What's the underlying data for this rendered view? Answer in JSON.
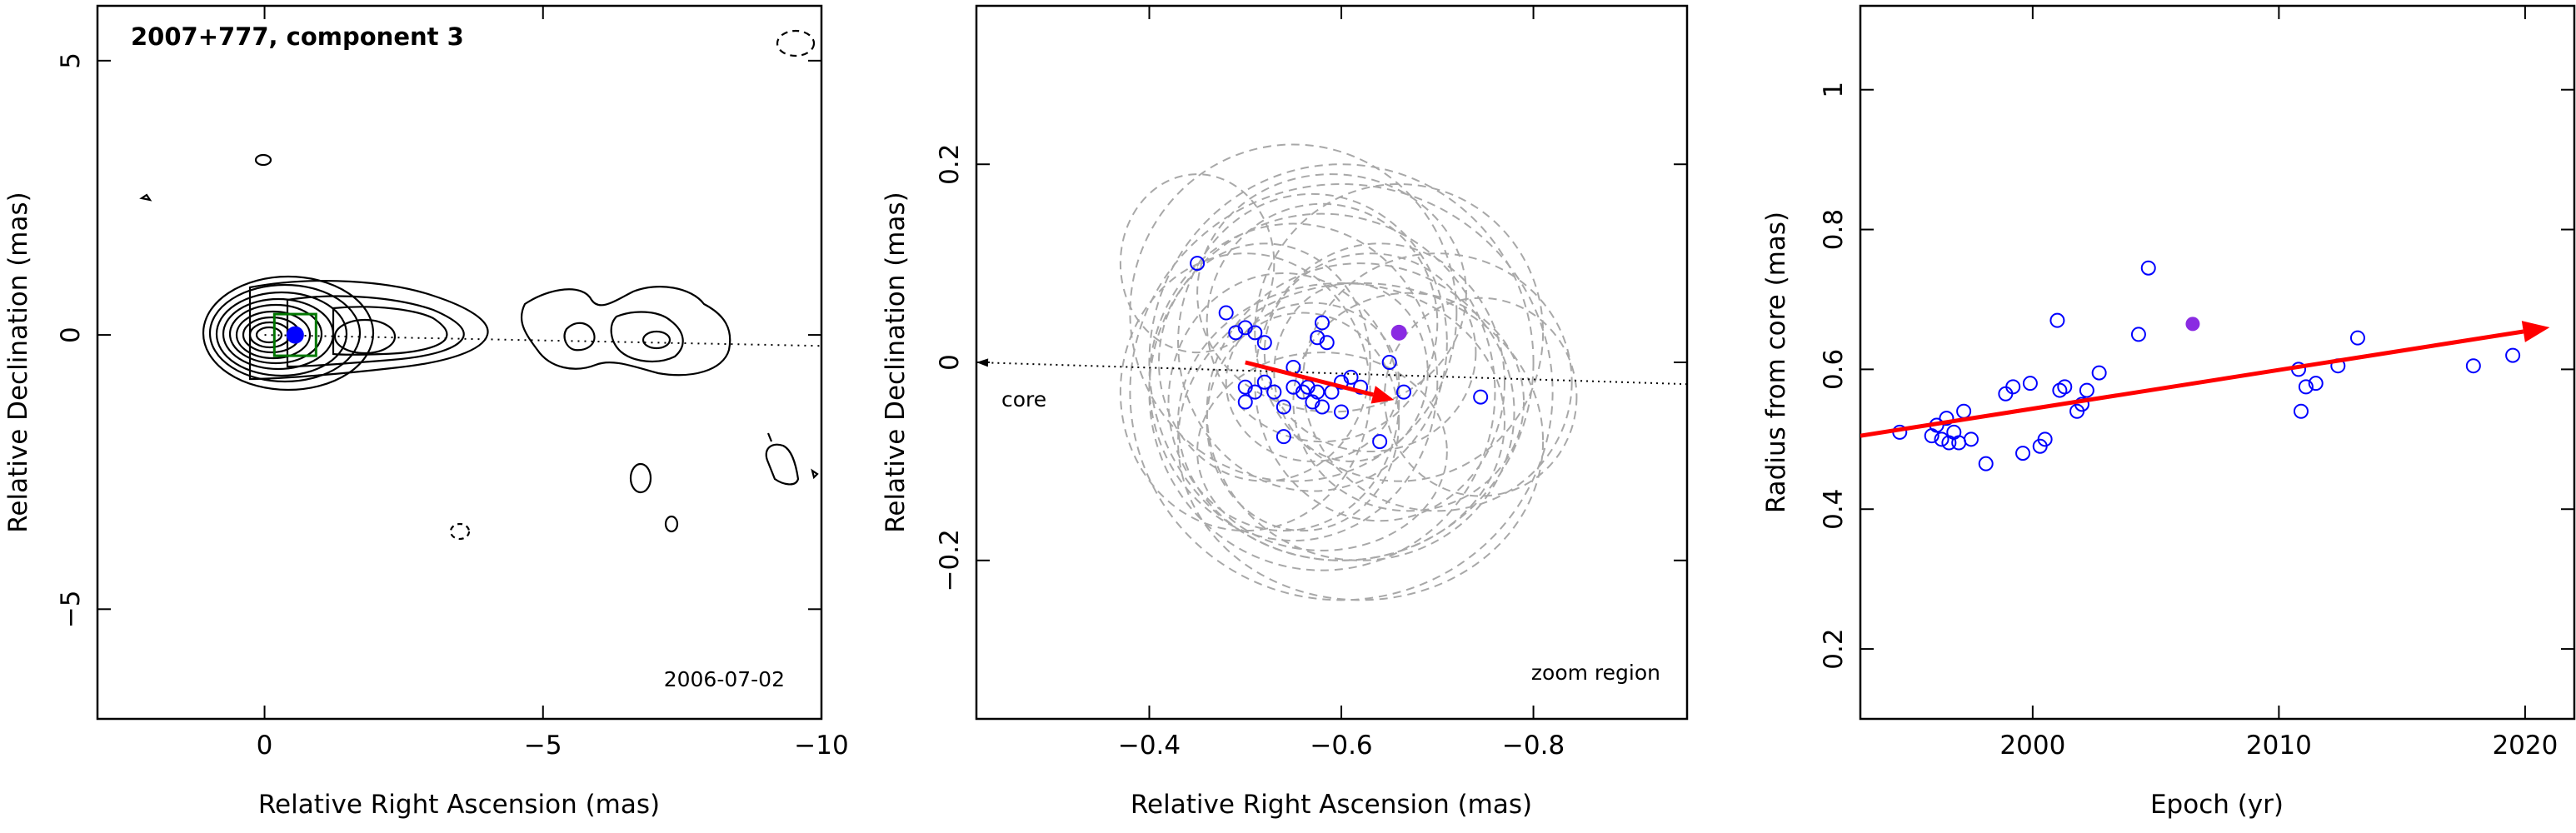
{
  "panels": {
    "map": {
      "title": "2007+777, component 3",
      "epoch_label": "2006-07-02",
      "xlabel": "Relative Right Ascension (mas)",
      "ylabel": "Relative Declination (mas)"
    },
    "zoom": {
      "xlabel": "Relative Right Ascension (mas)",
      "ylabel": "Relative Declination (mas)",
      "core_label": "core",
      "region_label": "zoom region"
    },
    "radius": {
      "xlabel": "Epoch (yr)",
      "ylabel": "Radius from core (mas)"
    }
  },
  "colors": {
    "axes": "#000000",
    "points": "#0000ff",
    "highlight": "#8a2be2",
    "arrow": "#ff0000",
    "ellipses": "#a8a8a8",
    "box": "#007700"
  },
  "chart_data": [
    {
      "type": "contour",
      "xlim": [
        3,
        -10
      ],
      "ylim": [
        -7,
        6
      ],
      "xticks": [
        0,
        -5,
        -10
      ],
      "xtick_labels": [
        "0",
        "−5",
        "−10"
      ],
      "yticks": [
        -5,
        0,
        5
      ],
      "ytick_labels": [
        "−5",
        "0",
        "5"
      ],
      "component_position": [
        -0.55,
        0.0
      ],
      "jet_direction_line": [
        [
          0,
          0
        ],
        [
          -10,
          -0.2
        ]
      ]
    },
    {
      "type": "scatter",
      "xlim": [
        -0.22,
        -0.96
      ],
      "ylim": [
        -0.36,
        0.36
      ],
      "xticks": [
        -0.4,
        -0.6,
        -0.8
      ],
      "xtick_labels": [
        "−0.4",
        "−0.6",
        "−0.8"
      ],
      "yticks": [
        -0.2,
        0,
        0.2
      ],
      "ytick_labels": [
        "−0.2",
        "0",
        "0.2"
      ],
      "points": [
        [
          -0.45,
          0.1
        ],
        [
          -0.48,
          0.05
        ],
        [
          -0.49,
          0.03
        ],
        [
          -0.5,
          0.035
        ],
        [
          -0.51,
          0.03
        ],
        [
          -0.52,
          0.02
        ],
        [
          -0.5,
          -0.025
        ],
        [
          -0.5,
          -0.04
        ],
        [
          -0.51,
          -0.03
        ],
        [
          -0.52,
          -0.02
        ],
        [
          -0.53,
          -0.03
        ],
        [
          -0.54,
          -0.045
        ],
        [
          -0.54,
          -0.075
        ],
        [
          -0.55,
          -0.005
        ],
        [
          -0.55,
          -0.025
        ],
        [
          -0.56,
          -0.03
        ],
        [
          -0.565,
          -0.025
        ],
        [
          -0.57,
          -0.04
        ],
        [
          -0.575,
          -0.03
        ],
        [
          -0.58,
          -0.045
        ],
        [
          -0.575,
          0.025
        ],
        [
          -0.58,
          0.04
        ],
        [
          -0.585,
          0.02
        ],
        [
          -0.59,
          -0.03
        ],
        [
          -0.6,
          -0.05
        ],
        [
          -0.6,
          -0.02
        ],
        [
          -0.61,
          -0.015
        ],
        [
          -0.62,
          -0.025
        ],
        [
          -0.64,
          -0.08
        ],
        [
          -0.65,
          0.0
        ],
        [
          -0.665,
          -0.03
        ],
        [
          -0.745,
          -0.035
        ]
      ],
      "highlight_point": [
        -0.66,
        0.03
      ],
      "motion_arrow": {
        "from": [
          -0.5,
          0.0
        ],
        "to": [
          -0.655,
          -0.038
        ]
      },
      "core_direction_line": {
        "from": [
          -0.96,
          -0.022
        ],
        "to": [
          -0.22,
          0.0
        ]
      },
      "uncertainty_ellipses": [
        {
          "c": [
            -0.58,
            -0.03
          ],
          "rx": 0.18,
          "ry": 0.18
        },
        {
          "c": [
            -0.6,
            0.0
          ],
          "rx": 0.2,
          "ry": 0.2
        },
        {
          "c": [
            -0.55,
            -0.02
          ],
          "rx": 0.15,
          "ry": 0.16
        },
        {
          "c": [
            -0.62,
            -0.05
          ],
          "rx": 0.16,
          "ry": 0.15
        },
        {
          "c": [
            -0.57,
            0.02
          ],
          "rx": 0.14,
          "ry": 0.15
        },
        {
          "c": [
            -0.6,
            -0.06
          ],
          "rx": 0.17,
          "ry": 0.14
        },
        {
          "c": [
            -0.54,
            -0.04
          ],
          "rx": 0.12,
          "ry": 0.13
        },
        {
          "c": [
            -0.64,
            -0.02
          ],
          "rx": 0.13,
          "ry": 0.14
        },
        {
          "c": [
            -0.58,
            0.04
          ],
          "rx": 0.12,
          "ry": 0.12
        },
        {
          "c": [
            -0.6,
            -0.03
          ],
          "rx": 0.22,
          "ry": 0.21
        },
        {
          "c": [
            -0.56,
            -0.06
          ],
          "rx": 0.1,
          "ry": 0.11
        },
        {
          "c": [
            -0.63,
            0.01
          ],
          "rx": 0.11,
          "ry": 0.1
        },
        {
          "c": [
            -0.52,
            0.0
          ],
          "rx": 0.11,
          "ry": 0.12
        },
        {
          "c": [
            -0.67,
            -0.04
          ],
          "rx": 0.12,
          "ry": 0.11
        },
        {
          "c": [
            -0.58,
            -0.09
          ],
          "rx": 0.13,
          "ry": 0.1
        },
        {
          "c": [
            -0.59,
            0.07
          ],
          "rx": 0.14,
          "ry": 0.12
        },
        {
          "c": [
            -0.7,
            -0.02
          ],
          "rx": 0.14,
          "ry": 0.13
        },
        {
          "c": [
            -0.5,
            -0.03
          ],
          "rx": 0.13,
          "ry": 0.14
        },
        {
          "c": [
            -0.61,
            -0.01
          ],
          "rx": 0.08,
          "ry": 0.09
        },
        {
          "c": [
            -0.57,
            -0.02
          ],
          "rx": 0.09,
          "ry": 0.08
        },
        {
          "c": [
            -0.745,
            -0.035
          ],
          "rx": 0.1,
          "ry": 0.1
        },
        {
          "c": [
            -0.45,
            0.1
          ],
          "rx": 0.08,
          "ry": 0.09
        },
        {
          "c": [
            -0.55,
            0.05
          ],
          "rx": 0.17,
          "ry": 0.17
        },
        {
          "c": [
            -0.62,
            -0.08
          ],
          "rx": 0.19,
          "ry": 0.16
        },
        {
          "c": [
            -0.66,
            0.03
          ],
          "rx": 0.15,
          "ry": 0.15
        }
      ]
    },
    {
      "type": "scatter",
      "xlim": [
        1993,
        2022
      ],
      "ylim": [
        0.1,
        1.12
      ],
      "xticks": [
        2000,
        2010,
        2020
      ],
      "xtick_labels": [
        "2000",
        "2010",
        "2020"
      ],
      "yticks": [
        0.2,
        0.4,
        0.6,
        0.8,
        1.0
      ],
      "ytick_labels": [
        "0.2",
        "0.4",
        "0.6",
        "0.8",
        "1"
      ],
      "x": [
        1994.6,
        1995.9,
        1996.1,
        1996.3,
        1996.5,
        1996.6,
        1996.8,
        1997.0,
        1997.2,
        1997.5,
        1998.1,
        1998.9,
        1999.2,
        1999.6,
        1999.9,
        2000.3,
        2000.5,
        2001.0,
        2001.1,
        2001.3,
        2001.8,
        2002.0,
        2002.2,
        2002.7,
        2004.3,
        2004.7,
        2010.8,
        2010.9,
        2011.1,
        2011.5,
        2012.4,
        2013.2,
        2017.9,
        2019.5
      ],
      "y": [
        0.51,
        0.505,
        0.52,
        0.5,
        0.53,
        0.495,
        0.51,
        0.495,
        0.54,
        0.5,
        0.465,
        0.565,
        0.575,
        0.48,
        0.58,
        0.49,
        0.5,
        0.67,
        0.57,
        0.575,
        0.54,
        0.55,
        0.57,
        0.595,
        0.65,
        0.745,
        0.6,
        0.54,
        0.575,
        0.58,
        0.605,
        0.645,
        0.605,
        0.62
      ],
      "highlight_point": [
        2006.5,
        0.665
      ],
      "trend_arrow": {
        "from": [
          1993,
          0.505
        ],
        "to": [
          2021,
          0.66
        ]
      }
    }
  ]
}
